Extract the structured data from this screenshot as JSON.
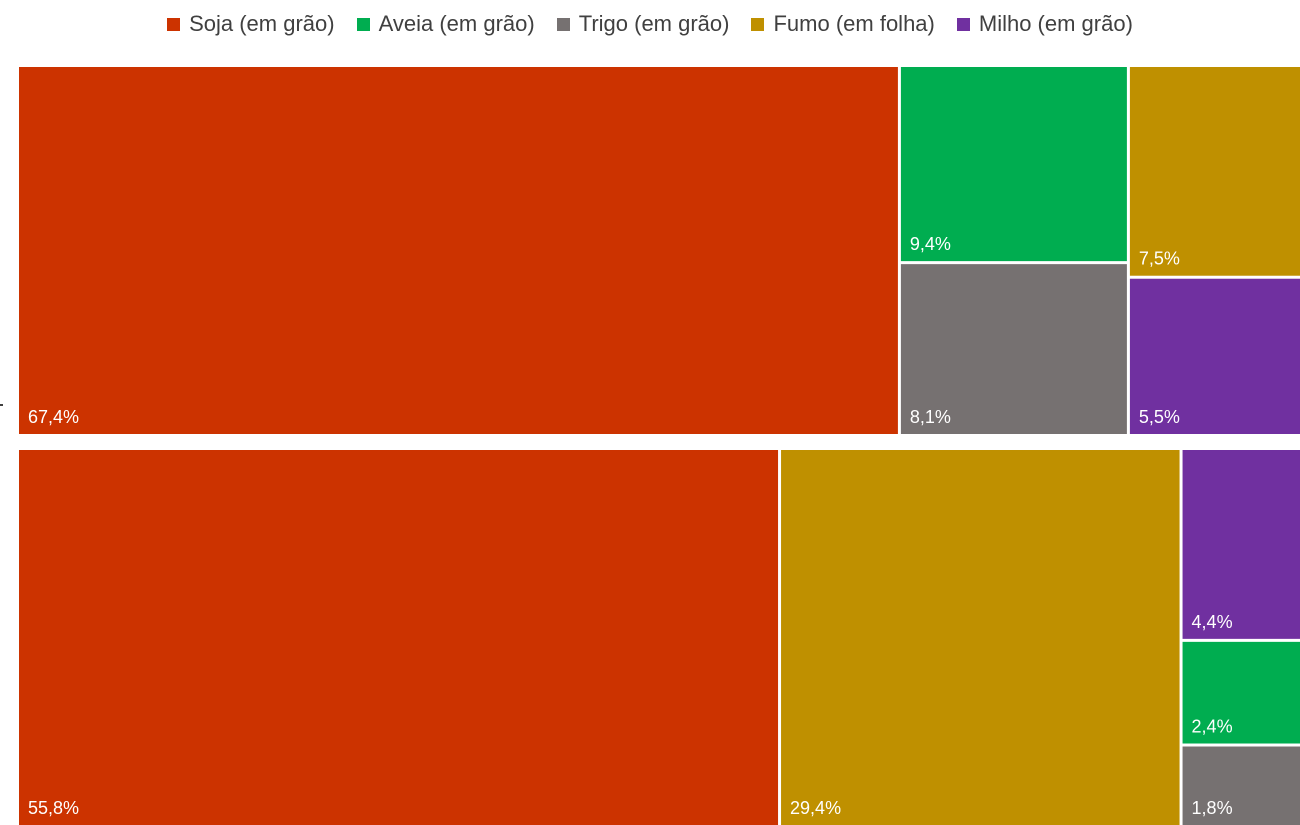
{
  "chart_data": {
    "type": "treemap",
    "title": "",
    "legend_position": "top",
    "legend": [
      {
        "name": "Soja (em grão)",
        "color": "#CC3300"
      },
      {
        "name": "Aveia (em grão)",
        "color": "#00AD50"
      },
      {
        "name": "Trigo (em grão)",
        "color": "#767171"
      },
      {
        "name": "Fumo (em folha)",
        "color": "#BF9000"
      },
      {
        "name": "Milho (em grão)",
        "color": "#7030A0"
      }
    ],
    "groups": [
      {
        "items": [
          {
            "category": "Soja (em grão)",
            "value": 67.4,
            "label": "67,4%"
          },
          {
            "category": "Aveia (em grão)",
            "value": 9.4,
            "label": "9,4%"
          },
          {
            "category": "Trigo (em grão)",
            "value": 8.1,
            "label": "8,1%"
          },
          {
            "category": "Fumo (em folha)",
            "value": 7.5,
            "label": "7,5%"
          },
          {
            "category": "Milho (em grão)",
            "value": 5.5,
            "label": "5,5%"
          }
        ]
      },
      {
        "items": [
          {
            "category": "Soja (em grão)",
            "value": 55.8,
            "label": "55,8%"
          },
          {
            "category": "Fumo (em folha)",
            "value": 29.4,
            "label": "29,4%"
          },
          {
            "category": "Milho (em grão)",
            "value": 4.4,
            "label": "4,4%"
          },
          {
            "category": "Aveia (em grão)",
            "value": 2.4,
            "label": "2,4%"
          },
          {
            "category": "Trigo (em grão)",
            "value": 1.8,
            "label": "1,8%"
          }
        ]
      }
    ]
  }
}
